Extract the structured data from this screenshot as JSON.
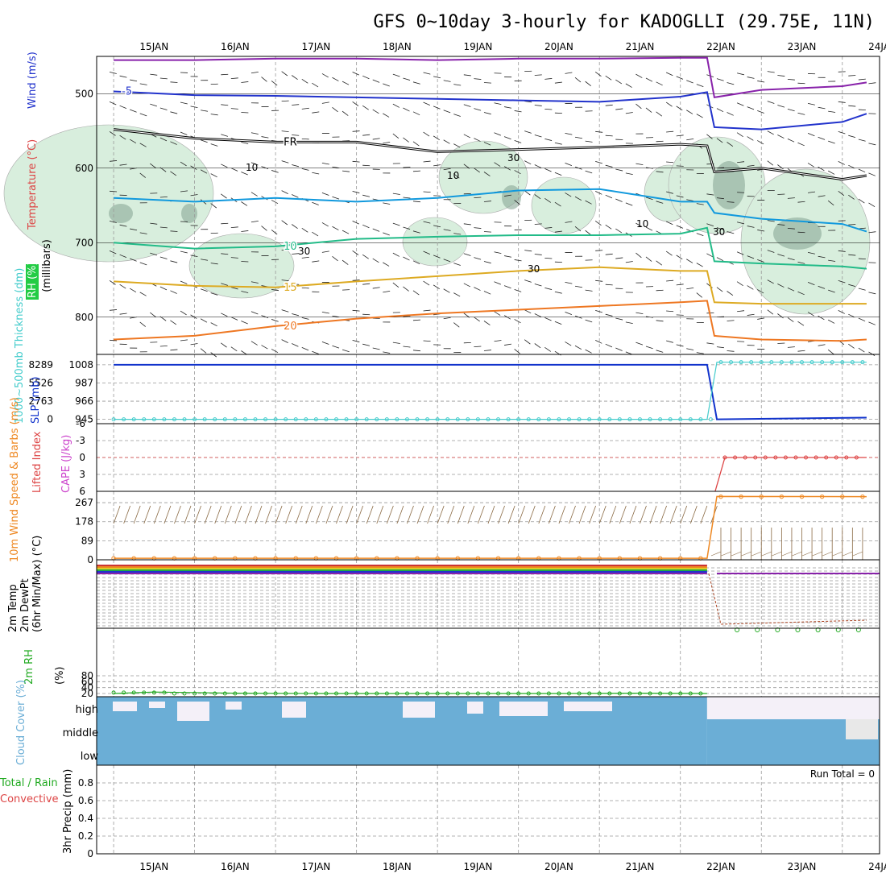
{
  "title": "GFS 0~10day 3-hourly for KADOGLLI (29.75E, 11N)",
  "colors": {
    "wind5": "#2233cc",
    "fr": "#000000",
    "t10": "#22bb88",
    "t15": "#ddaa22",
    "t20": "#ee7722",
    "purple": "#8822aa",
    "blue": "#1199dd",
    "slp": "#1133cc",
    "thick": "#44cccc",
    "cape": "#dd4444",
    "wind10": "#ee8822",
    "barb": "#8a6a44",
    "rh2m": "#22aa22",
    "cloud": "#6baed6",
    "rhfill": "#d8eedd",
    "rhdark": "#8aa898"
  },
  "chart_data": [
    {
      "type": "line",
      "panel": "upper_air",
      "x_ticks": [
        "15JAN",
        "16JAN",
        "17JAN",
        "18JAN",
        "19JAN",
        "20JAN",
        "21JAN",
        "22JAN",
        "23JAN",
        "24JAN"
      ],
      "ylabel_parts": [
        "Wind",
        "(m/s)",
        "Temperature",
        "(°C)",
        "RH",
        "(%)",
        "(millibars)"
      ],
      "y_ticks": [
        500,
        600,
        700,
        800
      ],
      "ylim": [
        850,
        450
      ],
      "x": [
        0.5,
        1.5,
        2.5,
        3.5,
        4.5,
        5.5,
        6.5,
        7.5,
        7.83,
        7.92,
        8.5,
        9.5,
        9.8
      ],
      "series": [
        {
          "name": "-5",
          "label": "-5",
          "values": [
            497,
            502,
            503,
            505,
            507,
            509,
            511,
            504,
            498,
            545,
            548,
            538,
            527
          ]
        },
        {
          "name": "FR",
          "label": "FR",
          "values": [
            548,
            560,
            565,
            565,
            578,
            575,
            572,
            568,
            570,
            605,
            600,
            615,
            610
          ]
        },
        {
          "name": "10",
          "label": "10",
          "values": [
            700,
            708,
            705,
            695,
            692,
            690,
            690,
            688,
            680,
            725,
            728,
            732,
            735
          ]
        },
        {
          "name": "15",
          "label": "15",
          "values": [
            752,
            758,
            760,
            752,
            745,
            738,
            733,
            738,
            738,
            780,
            782,
            782,
            782
          ]
        },
        {
          "name": "20",
          "label": "20",
          "values": [
            830,
            825,
            812,
            802,
            795,
            790,
            785,
            780,
            778,
            825,
            830,
            832,
            830
          ]
        },
        {
          "name": "blue",
          "values": [
            640,
            645,
            640,
            645,
            640,
            630,
            628,
            645,
            645,
            660,
            668,
            675,
            685
          ]
        },
        {
          "name": "purple",
          "values": [
            455,
            455,
            453,
            453,
            455,
            453,
            453,
            452,
            452,
            505,
            495,
            490,
            485
          ]
        }
      ],
      "annotations": [
        "30",
        "10"
      ]
    },
    {
      "type": "line",
      "panel": "slp_thickness",
      "ylabel": "SLP (mb)",
      "ylabel2": "1000~500mb Thickness (dm)",
      "y_ticks": [
        945,
        966,
        987,
        1008
      ],
      "y_ticks_left": [
        "0",
        "2763",
        "5526",
        "8289"
      ],
      "ylim": [
        940,
        1020
      ],
      "series": [
        {
          "name": "SLP (mb)",
          "x": [
            0.5,
            7.83,
            7.95,
            9.8
          ],
          "values": [
            1008,
            1008,
            945,
            947
          ]
        },
        {
          "name": "1000~500mb Thickness (dm)",
          "x": [
            0.5,
            7.83,
            7.95,
            9.8
          ],
          "values": [
            945,
            945,
            1011,
            1011
          ]
        }
      ]
    },
    {
      "type": "line",
      "panel": "lifted_cape",
      "ylabel": "Lifted Index",
      "ylabel2": "CAPE (J/kg)",
      "y_ticks": [
        "-6",
        "-3",
        "0",
        "3",
        "6"
      ],
      "series": [
        {
          "name": "Lifted Index",
          "x": [
            7.93,
            8.05,
            9.8
          ],
          "values": [
            6,
            0,
            0
          ]
        }
      ]
    },
    {
      "type": "line",
      "panel": "wind10m",
      "ylabel": "10m Wind Speed & Barbs (m/s)",
      "y_ticks": [
        0,
        89,
        178,
        267
      ],
      "ylim": [
        0,
        320
      ],
      "series": [
        {
          "name": "10m Wind Speed",
          "x": [
            0.5,
            7.83,
            7.95,
            9.8
          ],
          "values": [
            7,
            7,
            296,
            295
          ]
        }
      ]
    },
    {
      "type": "line",
      "panel": "temp2m",
      "ylabel": "2m Temp 2m DewPt (6hr Min/Max) (°C)",
      "series": [
        {
          "name": "2m Temp",
          "x": [
            0.5,
            7.83,
            7.95,
            9.8
          ],
          "values": [
            35,
            35,
            -80,
            -80
          ]
        }
      ]
    },
    {
      "type": "line",
      "panel": "rh2m",
      "ylabel": "2m RH (%)",
      "y_ticks": [
        20,
        40,
        60,
        80
      ],
      "series": [
        {
          "name": "2m RH",
          "x": [
            0.5,
            1,
            2,
            3,
            4,
            5,
            6,
            7,
            7.83
          ],
          "values": [
            20,
            25,
            21,
            20,
            20,
            20,
            20,
            21,
            20
          ]
        }
      ]
    },
    {
      "type": "area",
      "panel": "cloud",
      "ylabel": "Cloud Cover (%)",
      "levels": [
        "high",
        "middle",
        "low"
      ],
      "series": [
        {
          "name": "high",
          "x": [
            0.5,
            7.83,
            7.84,
            9.8
          ],
          "values": [
            100,
            100,
            0,
            0
          ]
        },
        {
          "name": "middle",
          "x": [
            0.5,
            9.8
          ],
          "values": [
            100,
            100
          ]
        },
        {
          "name": "low",
          "x": [
            0.5,
            9.8
          ],
          "values": [
            100,
            100
          ]
        }
      ]
    },
    {
      "type": "bar",
      "panel": "precip",
      "ylabel": "3hr Precip (mm)",
      "legend": [
        "Total / Rain",
        "Convective"
      ],
      "y_ticks": [
        "0",
        "0.2",
        "0.4",
        "0.6",
        "0.8"
      ],
      "ylim": [
        0,
        1
      ],
      "run_total": "Run Total = 0",
      "values": []
    }
  ]
}
